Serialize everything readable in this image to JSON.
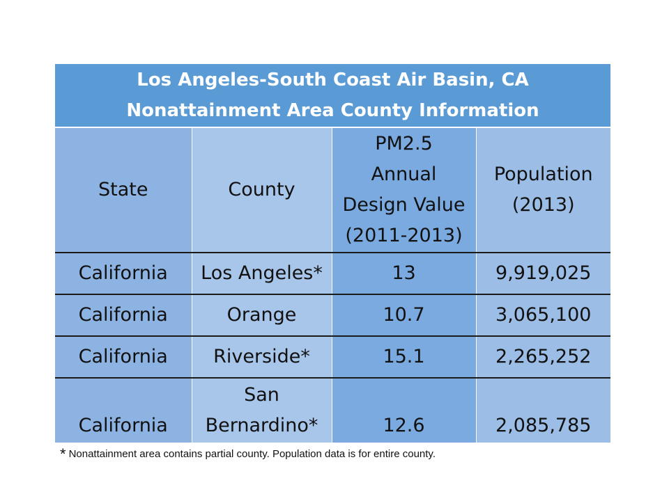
{
  "table": {
    "title_line1": "Los Angeles-South Coast Air Basin, CA",
    "title_line2": "Nonattainment Area County Information",
    "headers": {
      "state": "State",
      "county": "County",
      "pm_line1": "PM2.5",
      "pm_line2": "Annual",
      "pm_line3": "Design Value",
      "pm_line4": "(2011-2013)",
      "pop_line1": "Population",
      "pop_line2": "(2013)"
    },
    "rows": [
      {
        "state": "California",
        "county": "Los Angeles*",
        "pm25": "13",
        "population": "9,919,025"
      },
      {
        "state": "California",
        "county": "Orange",
        "pm25": "10.7",
        "population": "3,065,100"
      },
      {
        "state": "California",
        "county": "Riverside*",
        "pm25": "15.1",
        "population": "2,265,252"
      },
      {
        "state": "California",
        "county_line1": "San",
        "county_line2": "Bernardino*",
        "pm25": "12.6",
        "population": "2,085,785"
      }
    ]
  },
  "footnote": {
    "symbol": "*",
    "text": "Nonattainment area contains partial county.  Population data is for entire county."
  }
}
